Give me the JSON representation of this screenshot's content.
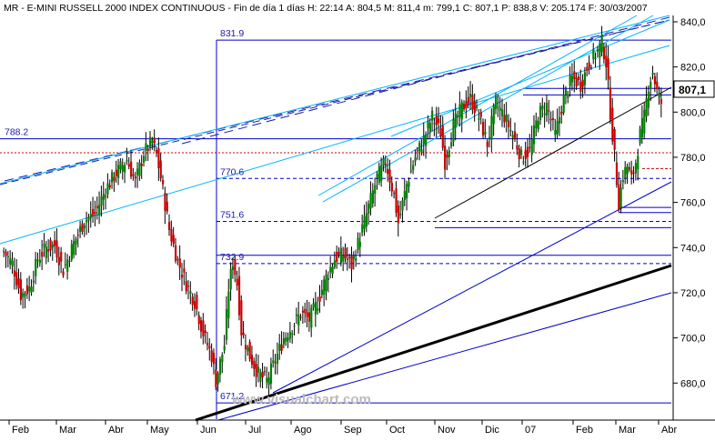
{
  "header": {
    "text": "MR - E-MINI RUSSELL 2000 INDEX CONTINUOUS - Fin de día 1 días H: 22:14 A: 804,5 M: 811,4 m: 799,1 C: 807,1 P: 838,8 V: 205.174 F: 30/03/2007",
    "close_label": "C: 807,1"
  },
  "watermark": "www.visualchart.com",
  "colors": {
    "background": "#ffffff",
    "up_candle": "#008000",
    "down_candle": "#cc0000",
    "horizontal_lines": "#0000cc",
    "trend_cyan": "#00b4ff",
    "trend_black": "#000000",
    "red_dotted": "#cc0000"
  },
  "chart_data": {
    "type": "candlestick",
    "title": "MR - E-MINI RUSSELL 2000 INDEX CONTINUOUS",
    "x_tick_labels": [
      "Feb",
      "Mar",
      "Abr",
      "May",
      "Jun",
      "Jul",
      "Ago",
      "Sep",
      "Oct",
      "Nov",
      "Dic",
      "07",
      "Feb",
      "Mar",
      "Abr"
    ],
    "y_ticks": [
      "680,0",
      "700,0",
      "720,0",
      "740,0",
      "760,0",
      "780,0",
      "800,0",
      "820,0",
      "840,0"
    ],
    "ylim": [
      664,
      842
    ],
    "last_price_label": "807,1",
    "grid": false,
    "annotations": [
      {
        "label": "831.9",
        "value": 831.9
      },
      {
        "label": "788.2",
        "value": 788.2
      },
      {
        "label": "770.6",
        "value": 770.6
      },
      {
        "label": "751.6",
        "value": 751.6
      },
      {
        "label": "732.9",
        "value": 732.9
      },
      {
        "label": "671.2",
        "value": 671.2
      }
    ],
    "price_path_anchors": [
      [
        0,
        738
      ],
      [
        4,
        733
      ],
      [
        8,
        719
      ],
      [
        12,
        722
      ],
      [
        16,
        735
      ],
      [
        20,
        740
      ],
      [
        24,
        741
      ],
      [
        28,
        730
      ],
      [
        33,
        742
      ],
      [
        38,
        752
      ],
      [
        43,
        755
      ],
      [
        48,
        766
      ],
      [
        53,
        773
      ],
      [
        58,
        779
      ],
      [
        62,
        769
      ],
      [
        66,
        782
      ],
      [
        70,
        787
      ],
      [
        72,
        781
      ],
      [
        74,
        771
      ],
      [
        78,
        748
      ],
      [
        82,
        734
      ],
      [
        86,
        724
      ],
      [
        90,
        716
      ],
      [
        94,
        702
      ],
      [
        98,
        692
      ],
      [
        100,
        681
      ],
      [
        104,
        697
      ],
      [
        106,
        722
      ],
      [
        108,
        734
      ],
      [
        110,
        724
      ],
      [
        112,
        703
      ],
      [
        116,
        692
      ],
      [
        120,
        684
      ],
      [
        124,
        681
      ],
      [
        128,
        690
      ],
      [
        132,
        700
      ],
      [
        136,
        705
      ],
      [
        140,
        711
      ],
      [
        144,
        708
      ],
      [
        148,
        716
      ],
      [
        152,
        727
      ],
      [
        156,
        735
      ],
      [
        160,
        737
      ],
      [
        164,
        732
      ],
      [
        168,
        745
      ],
      [
        172,
        758
      ],
      [
        176,
        771
      ],
      [
        180,
        778
      ],
      [
        184,
        763
      ],
      [
        186,
        751
      ],
      [
        190,
        768
      ],
      [
        194,
        780
      ],
      [
        198,
        788
      ],
      [
        202,
        798
      ],
      [
        206,
        791
      ],
      [
        208,
        778
      ],
      [
        212,
        794
      ],
      [
        216,
        802
      ],
      [
        220,
        806
      ],
      [
        224,
        798
      ],
      [
        228,
        786
      ],
      [
        232,
        804
      ],
      [
        236,
        798
      ],
      [
        240,
        790
      ],
      [
        244,
        780
      ],
      [
        248,
        783
      ],
      [
        252,
        799
      ],
      [
        256,
        803
      ],
      [
        260,
        790
      ],
      [
        264,
        806
      ],
      [
        268,
        815
      ],
      [
        272,
        812
      ],
      [
        276,
        822
      ],
      [
        280,
        827
      ],
      [
        282,
        831
      ],
      [
        284,
        822
      ],
      [
        286,
        800
      ],
      [
        288,
        780
      ],
      [
        290,
        760
      ],
      [
        292,
        772
      ],
      [
        294,
        776
      ],
      [
        296,
        770
      ],
      [
        298,
        778
      ],
      [
        300,
        790
      ],
      [
        302,
        798
      ],
      [
        304,
        812
      ],
      [
        306,
        818
      ],
      [
        308,
        809
      ],
      [
        310,
        804
      ]
    ]
  }
}
